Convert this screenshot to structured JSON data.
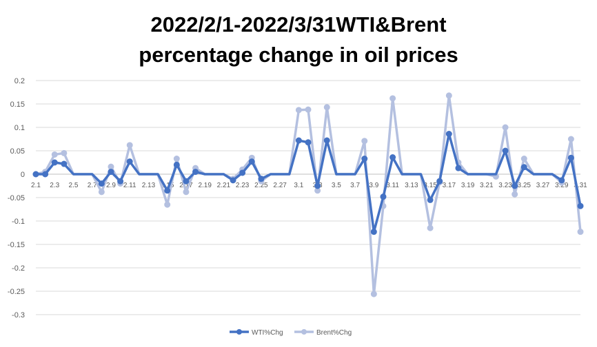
{
  "chart_data": {
    "type": "line",
    "title_line1": "2022/2/1-2022/3/31WTI&Brent",
    "title_line2": "percentage change in oil prices",
    "ylim": [
      -0.3,
      0.2
    ],
    "yticks": [
      0.2,
      0.15,
      0.1,
      0.05,
      0,
      -0.05,
      -0.1,
      -0.15,
      -0.2,
      -0.25,
      -0.3
    ],
    "ytick_labels": [
      "0.2",
      "0.15",
      "0.1",
      "0.05",
      "0",
      "-0.05",
      "-0.1",
      "-0.15",
      "-0.2",
      "-0.25",
      "-0.3"
    ],
    "x": [
      "2.1",
      "2.2",
      "2.3",
      "2.4",
      "2.5",
      "2.6",
      "2.7",
      "2.8",
      "2.9",
      "2.10",
      "2.11",
      "2.12",
      "2.13",
      "2.14",
      "2.15",
      "2.16",
      "2.17",
      "2.18",
      "2.19",
      "2.20",
      "2.21",
      "2.22",
      "2.23",
      "2.24",
      "2.25",
      "2.26",
      "2.27",
      "2.28",
      "3.1",
      "3.2",
      "3.3",
      "3.4",
      "3.5",
      "3.6",
      "3.7",
      "3.8",
      "3.9",
      "3.10",
      "3.11",
      "3.12",
      "3.13",
      "3.14",
      "3.15",
      "3.16",
      "3.17",
      "3.18",
      "3.19",
      "3.20",
      "3.21",
      "3.22",
      "3.23",
      "3.24",
      "3.25",
      "3.26",
      "3.27",
      "3.28",
      "3.29",
      "3.30",
      "3.31"
    ],
    "xtick_labels": [
      "2.1",
      "2.3",
      "2.5",
      "2.7",
      "2.9",
      "2.11",
      "2.13",
      "2.15",
      "2.17",
      "2.19",
      "2.21",
      "2.23",
      "2.25",
      "2.27",
      "3.1",
      "3.3",
      "3.5",
      "3.7",
      "3.9",
      "3.11",
      "3.13",
      "3.15",
      "3.17",
      "3.19",
      "3.21",
      "3.23",
      "3.25",
      "3.27",
      "3.29",
      "3.31"
    ],
    "grid": true,
    "legend_position": "bottom",
    "series": [
      {
        "name": "WTI%Chg",
        "color": "#4472c4",
        "values": [
          0,
          0,
          0.025,
          0.022,
          0,
          0,
          0,
          -0.02,
          0.005,
          -0.015,
          0.027,
          0,
          0,
          0,
          -0.035,
          0.02,
          -0.015,
          0.005,
          0,
          0,
          0,
          -0.013,
          0.003,
          0.027,
          -0.01,
          0,
          0,
          0,
          0.072,
          0.068,
          -0.025,
          0.072,
          0,
          0,
          0,
          0.033,
          -0.123,
          -0.048,
          0.036,
          0,
          0,
          0,
          -0.055,
          -0.015,
          0.086,
          0.013,
          0,
          0,
          0,
          0,
          0.05,
          -0.025,
          0.015,
          0,
          0,
          0,
          -0.013,
          0.035,
          -0.068
        ],
        "markers": [
          true,
          true,
          true,
          true,
          false,
          false,
          false,
          true,
          true,
          true,
          true,
          false,
          false,
          false,
          true,
          true,
          true,
          true,
          false,
          false,
          false,
          true,
          true,
          true,
          true,
          false,
          false,
          false,
          true,
          true,
          true,
          true,
          false,
          false,
          false,
          true,
          true,
          true,
          true,
          false,
          false,
          false,
          true,
          true,
          true,
          true,
          false,
          false,
          false,
          false,
          true,
          true,
          true,
          false,
          false,
          false,
          true,
          true,
          true
        ]
      },
      {
        "name": "Brent%Chg",
        "color": "#b4c0e0",
        "values": [
          0,
          0.005,
          0.042,
          0.045,
          0,
          0,
          0,
          -0.038,
          0.016,
          -0.02,
          0.062,
          0,
          0,
          0,
          -0.065,
          0.033,
          -0.038,
          0.013,
          0,
          0,
          0,
          -0.01,
          0.01,
          0.035,
          -0.015,
          0,
          0,
          0,
          0.137,
          0.138,
          -0.035,
          0.143,
          0,
          0,
          0,
          0.071,
          -0.256,
          -0.068,
          0.162,
          0,
          0,
          0,
          -0.115,
          -0.017,
          0.168,
          0.025,
          0,
          0,
          0,
          -0.005,
          0.1,
          -0.043,
          0.033,
          0,
          0,
          0,
          -0.018,
          0.075,
          -0.123
        ],
        "markers": [
          true,
          true,
          true,
          true,
          false,
          false,
          false,
          true,
          true,
          true,
          true,
          false,
          false,
          false,
          true,
          true,
          true,
          true,
          false,
          false,
          false,
          true,
          true,
          true,
          true,
          false,
          false,
          false,
          true,
          true,
          true,
          true,
          false,
          false,
          false,
          true,
          true,
          true,
          true,
          false,
          false,
          false,
          true,
          true,
          true,
          true,
          false,
          false,
          false,
          true,
          true,
          true,
          true,
          false,
          false,
          false,
          true,
          true,
          true
        ]
      }
    ]
  }
}
